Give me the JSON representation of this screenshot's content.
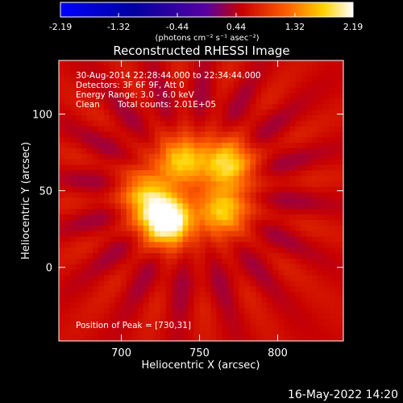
{
  "chart_data": {
    "type": "heatmap",
    "title": "Reconstructed RHESSI Image",
    "xlabel": "Heliocentric X (arcsec)",
    "ylabel": "Heliocentric Y (arcsec)",
    "xlim": [
      660,
      842
    ],
    "ylim": [
      -48,
      135
    ],
    "xticks": [
      700,
      750,
      800
    ],
    "yticks": [
      0,
      50,
      100
    ],
    "colorbar": {
      "min": -2.19,
      "max": 2.19,
      "ticks": [
        "-2.19",
        "-1.32",
        "-0.44",
        "0.44",
        "1.32",
        "2.19"
      ],
      "units": "(photons cm⁻² s⁻¹ asec⁻²)"
    },
    "annotations": {
      "time_range": "30-Aug-2014 22:28:44.000 to 22:34:44.000",
      "detectors": "Detectors: 3F 6F 9F, Att 0",
      "energy_range": "Energy Range: 3.0 - 6.0 keV",
      "method": "Clean",
      "total_counts": "Total counts: 2.01E+05",
      "peak": "Position of Peak = [730,31]"
    },
    "peak_position": [
      730,
      31
    ],
    "sources": [
      {
        "x": 729,
        "y": 31,
        "strength": 2.1
      },
      {
        "x": 739,
        "y": 70,
        "strength": 1.2
      },
      {
        "x": 768,
        "y": 68,
        "strength": 1.3
      },
      {
        "x": 765,
        "y": 37,
        "strength": 1.2
      },
      {
        "x": 715,
        "y": 48,
        "strength": 1.0
      }
    ]
  },
  "footer": {
    "timestamp": "16-May-2022 14:20"
  }
}
